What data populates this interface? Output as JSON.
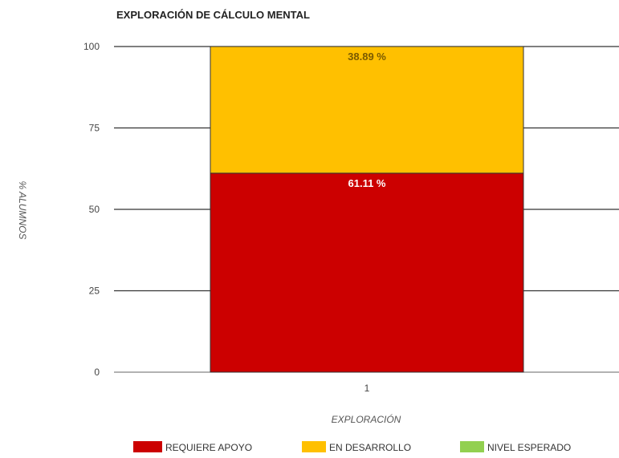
{
  "chart_data": {
    "type": "bar",
    "stacked": true,
    "title": "EXPLORACIÓN DE CÁLCULO MENTAL",
    "xlabel": "EXPLORACIÓN",
    "ylabel": "% ALUMNOS",
    "categories": [
      "1"
    ],
    "ylim": [
      0,
      100
    ],
    "yticks": [
      "0",
      "25",
      "50",
      "75",
      "100"
    ],
    "grid": true,
    "legend_position": "bottom",
    "series": [
      {
        "name": "REQUIERE APOYO",
        "values": [
          61.11
        ],
        "label": "61.11 %",
        "color": "#cc0000",
        "label_color": "#ffffff"
      },
      {
        "name": "EN DESARROLLO",
        "values": [
          38.89
        ],
        "label": "38.89 %",
        "color": "#ffc000",
        "label_color": "#7a5a00"
      },
      {
        "name": "NIVEL ESPERADO",
        "values": [
          0
        ],
        "label": "",
        "color": "#92d050",
        "label_color": "#333333"
      }
    ]
  }
}
